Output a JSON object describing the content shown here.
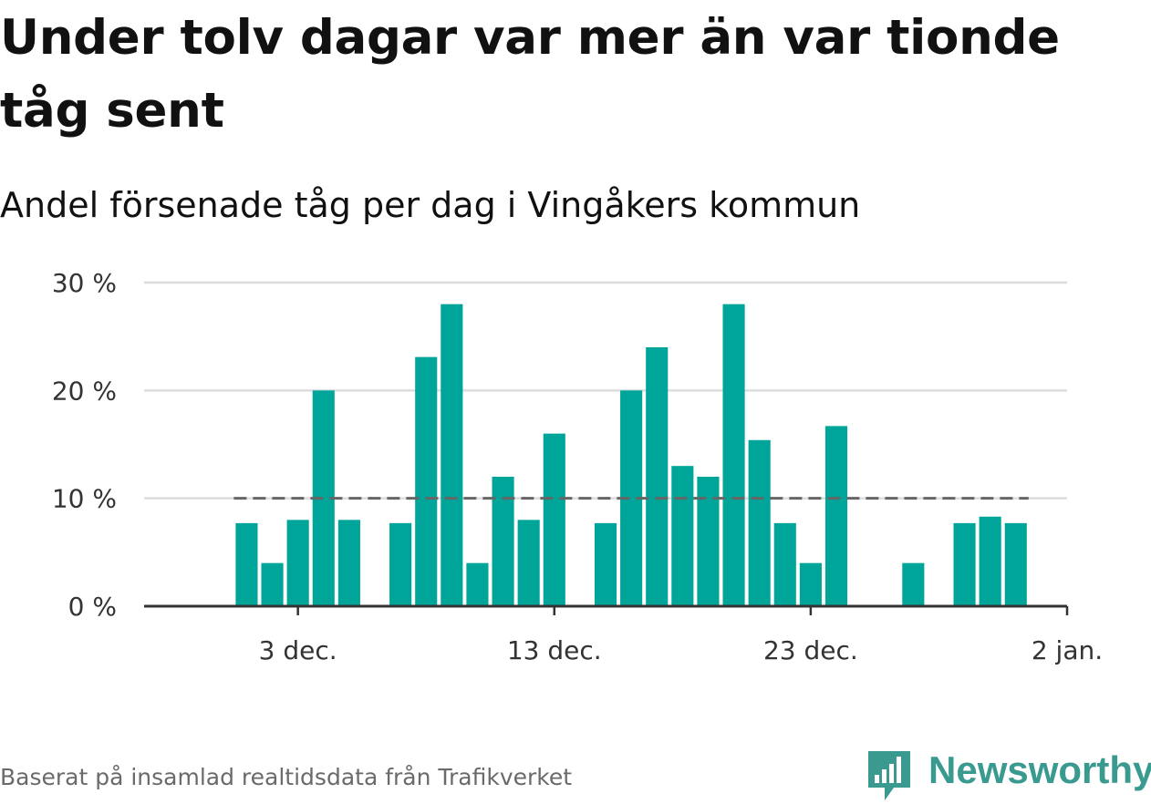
{
  "header": {
    "title": "Under tolv dagar var mer än var tionde tåg sent",
    "subtitle": "Andel försenade tåg per dag i Vingåkers kommun"
  },
  "footer": {
    "source": "Baserat på insamlad realtidsdata från Trafikverket",
    "brand": "Newsworthy"
  },
  "colors": {
    "bar": "#00A599",
    "reference_line": "#666666",
    "grid": "#dddddd",
    "axis": "#333333",
    "brand": "#3a9a90"
  },
  "icons": {
    "brand_logo": "bar-chart-speech-bubble-icon"
  },
  "chart_data": {
    "type": "bar",
    "title": "Under tolv dagar var mer än var tionde tåg sent",
    "subtitle": "Andel försenade tåg per dag i Vingåkers kommun",
    "xlabel": "",
    "ylabel": "",
    "x_type": "date",
    "dates": [
      "2023-12-01",
      "2023-12-02",
      "2023-12-03",
      "2023-12-04",
      "2023-12-05",
      "2023-12-06",
      "2023-12-07",
      "2023-12-08",
      "2023-12-09",
      "2023-12-10",
      "2023-12-11",
      "2023-12-12",
      "2023-12-13",
      "2023-12-14",
      "2023-12-15",
      "2023-12-16",
      "2023-12-17",
      "2023-12-18",
      "2023-12-19",
      "2023-12-20",
      "2023-12-21",
      "2023-12-22",
      "2023-12-23",
      "2023-12-24",
      "2023-12-25",
      "2023-12-26",
      "2023-12-27",
      "2023-12-28",
      "2023-12-29",
      "2023-12-30",
      "2023-12-31",
      "2024-01-01"
    ],
    "values": [
      7.7,
      4.0,
      8.0,
      20.0,
      8.0,
      null,
      7.7,
      23.1,
      28.0,
      4.0,
      12.0,
      8.0,
      16.0,
      null,
      7.7,
      20.0,
      24.0,
      13.0,
      12.0,
      28.0,
      15.4,
      7.7,
      4.0,
      16.7,
      null,
      null,
      4.0,
      null,
      7.7,
      8.3,
      7.7,
      null
    ],
    "reference_line": {
      "value": 10,
      "style": "dashed"
    },
    "ylim": [
      0,
      30
    ],
    "yticks": [
      0,
      10,
      20,
      30
    ],
    "ytick_labels": [
      "0 %",
      "10 %",
      "20 %",
      "30 %"
    ],
    "xticks": [
      "2023-12-03",
      "2023-12-13",
      "2023-12-23",
      "2024-01-02"
    ],
    "xtick_labels": [
      "3 dec.",
      "13 dec.",
      "23 dec.",
      "2 jan."
    ],
    "xlim": [
      "2023-11-27",
      "2024-01-02"
    ],
    "grid": true,
    "legend": "none"
  }
}
